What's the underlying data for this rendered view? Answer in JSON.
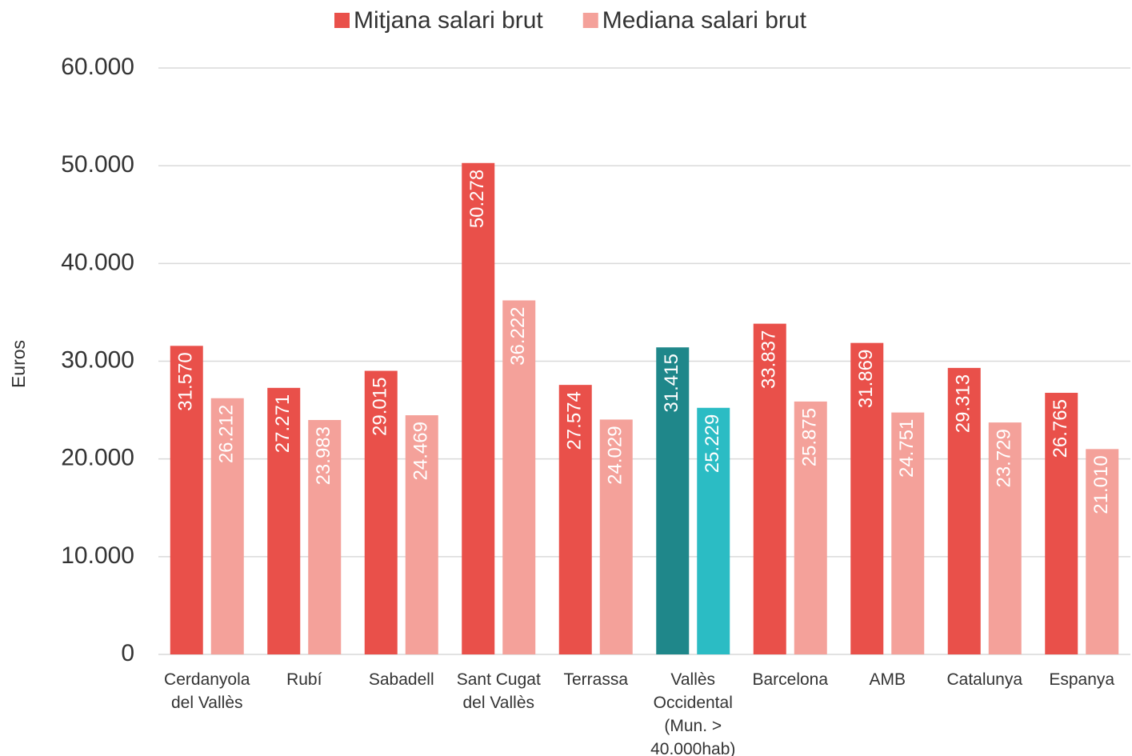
{
  "chart_data": {
    "type": "bar",
    "y_label": "Euros",
    "categories": [
      "Cerdanyola del Vallès",
      "Rubí",
      "Sabadell",
      "Sant Cugat del Vallès",
      "Terrassa",
      "Vallès Occidental (Mun. > 40.000hab)",
      "Barcelona",
      "AMB",
      "Catalunya",
      "Espanya"
    ],
    "series": [
      {
        "name": "Mitjana salari brut",
        "color": "#e9504a",
        "colors": [
          "#e9504a",
          "#e9504a",
          "#e9504a",
          "#e9504a",
          "#e9504a",
          "#1f878a",
          "#e9504a",
          "#e9504a",
          "#e9504a",
          "#e9504a"
        ],
        "values": [
          31570,
          27271,
          29015,
          50278,
          27574,
          31415,
          33837,
          31869,
          29313,
          26765
        ],
        "value_labels": [
          "31.570",
          "27.271",
          "29.015",
          "50.278",
          "27.574",
          "31.415",
          "33.837",
          "31.869",
          "29.313",
          "26.765"
        ]
      },
      {
        "name": "Mediana salari brut",
        "color": "#f4a19a",
        "colors": [
          "#f4a19a",
          "#f4a19a",
          "#f4a19a",
          "#f4a19a",
          "#f4a19a",
          "#2bbcc4",
          "#f4a19a",
          "#f4a19a",
          "#f4a19a",
          "#f4a19a"
        ],
        "values": [
          26212,
          23983,
          24469,
          36222,
          24029,
          25229,
          25875,
          24751,
          23729,
          21010
        ],
        "value_labels": [
          "26.212",
          "23.983",
          "24.469",
          "36.222",
          "24.029",
          "25.229",
          "25.875",
          "24.751",
          "23.729",
          "21.010"
        ]
      }
    ],
    "ylim": [
      0,
      60000
    ],
    "yticks": [
      {
        "value": 0,
        "label": "0"
      },
      {
        "value": 10000,
        "label": "10.000"
      },
      {
        "value": 20000,
        "label": "20.000"
      },
      {
        "value": 30000,
        "label": "30.000"
      },
      {
        "value": 40000,
        "label": "40.000"
      },
      {
        "value": 50000,
        "label": "50.000"
      },
      {
        "value": 60000,
        "label": "60.000"
      }
    ],
    "grid": true,
    "legend": "top"
  }
}
